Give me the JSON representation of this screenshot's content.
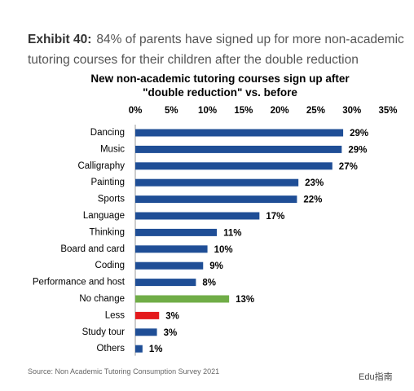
{
  "header": {
    "label": "Exhibit 40:",
    "text": "84% of parents have signed up for more non-academic tutoring courses for their children after the double reduction"
  },
  "chart_data": {
    "type": "bar",
    "orientation": "horizontal",
    "title": "New non-academic tutoring courses sign up after \"double reduction\" vs. before",
    "categories": [
      "Dancing",
      "Music",
      "Calligraphy",
      "Painting",
      "Sports",
      "Language",
      "Thinking",
      "Board and card",
      "Coding",
      "Performance and host",
      "No change",
      "Less",
      "Study tour",
      "Others"
    ],
    "values": [
      28.8,
      28.6,
      27.3,
      22.6,
      22.4,
      17.2,
      11.3,
      10.0,
      9.4,
      8.4,
      13.0,
      3.3,
      3.0,
      1.0
    ],
    "value_labels": [
      "29%",
      "29%",
      "27%",
      "23%",
      "22%",
      "17%",
      "11%",
      "10%",
      "9%",
      "8%",
      "13%",
      "3%",
      "3%",
      "1%"
    ],
    "colors": [
      "#1f4e96",
      "#1f4e96",
      "#1f4e96",
      "#1f4e96",
      "#1f4e96",
      "#1f4e96",
      "#1f4e96",
      "#1f4e96",
      "#1f4e96",
      "#1f4e96",
      "#70ad47",
      "#e41a1c",
      "#1f4e96",
      "#1f4e96"
    ],
    "xlim": [
      0,
      35
    ],
    "xticks": [
      {
        "value": 0,
        "label": "0%"
      },
      {
        "value": 5,
        "label": "5%"
      },
      {
        "value": 10,
        "label": "10%"
      },
      {
        "value": 15,
        "label": "15%"
      },
      {
        "value": 20,
        "label": "20%"
      },
      {
        "value": 25,
        "label": "25%"
      },
      {
        "value": 30,
        "label": "30%"
      },
      {
        "value": 35,
        "label": "35%"
      }
    ],
    "grid": false
  },
  "source": "Source: Non Academic Tutoring Consumption Survey 2021",
  "watermark": "Edu指南"
}
